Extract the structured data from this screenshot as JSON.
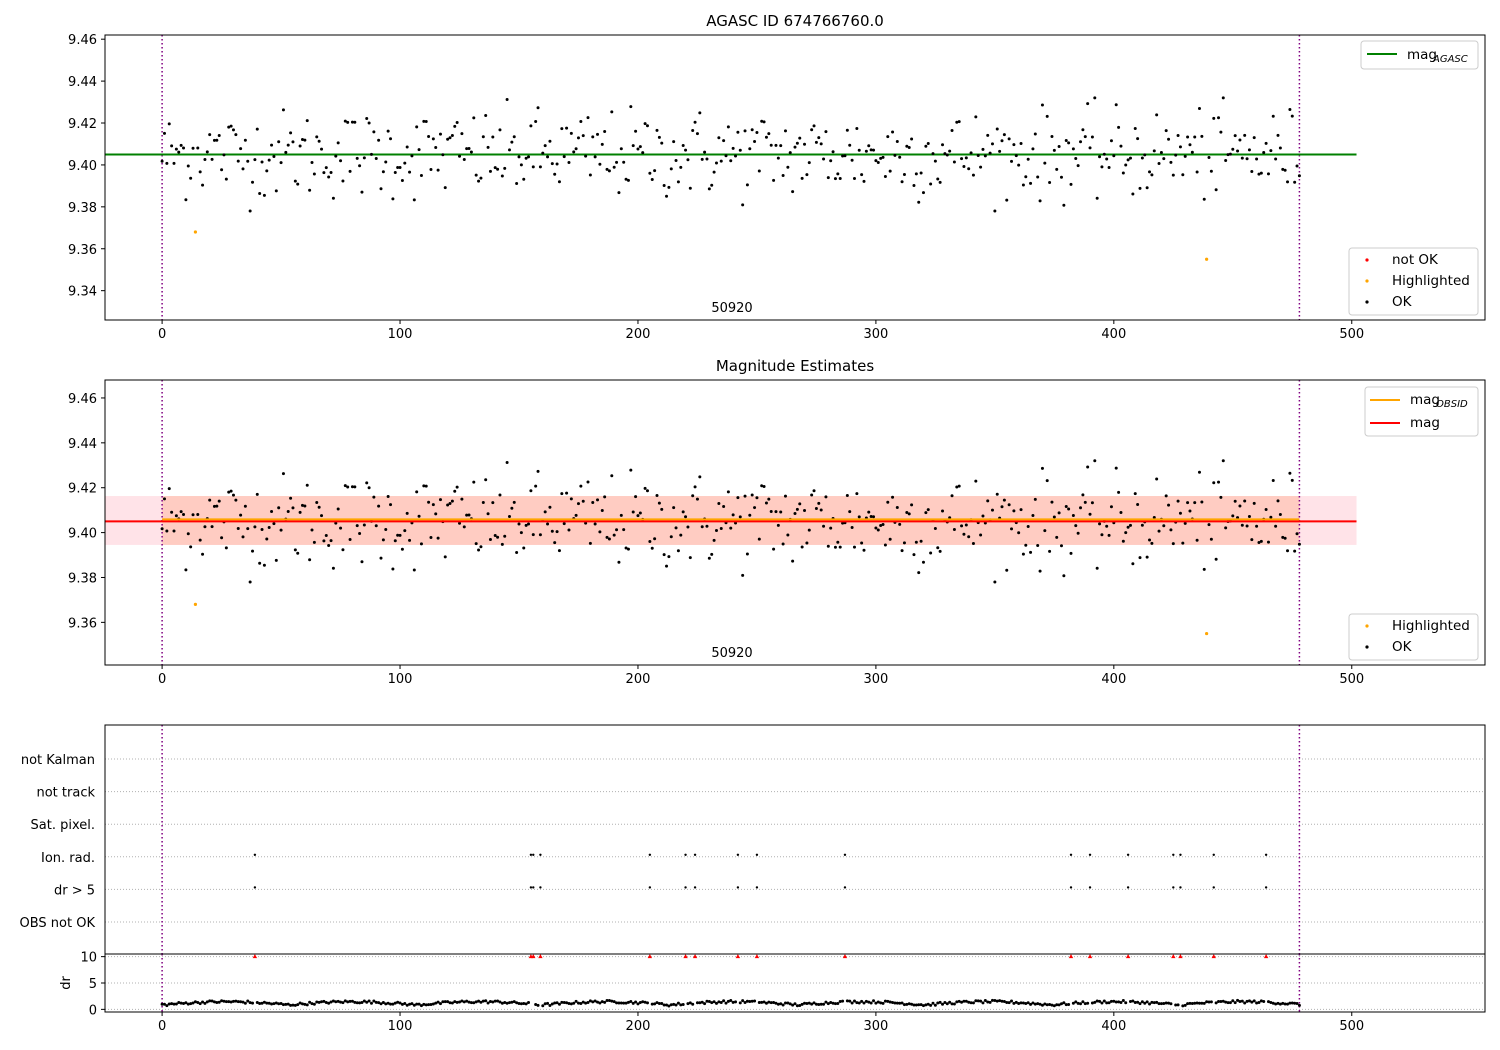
{
  "colors": {
    "ok": "#000000",
    "not_ok": "#ff0000",
    "highlighted": "#ffa500",
    "mag_agasc_line": "#008000",
    "mag_line": "#ff0000",
    "mag_obsid_line": "#ffa500",
    "band_outer": "#ffc0cb",
    "band_inner": "#ffa07a",
    "obs_boundary": "#800080",
    "grid": "#b0b0b0"
  },
  "chart_data": [
    {
      "id": "agasc",
      "type": "scatter",
      "title": "AGASC ID 674766760.0",
      "xlim": [
        -24,
        556
      ],
      "ylim": [
        9.326,
        9.462
      ],
      "xticks": [
        0,
        100,
        200,
        300,
        400,
        500
      ],
      "yticks": [
        9.34,
        9.36,
        9.38,
        9.4,
        9.42,
        9.44,
        9.46
      ],
      "obs_label": "50920",
      "obs_boundaries": [
        0,
        478
      ],
      "mag_agasc": 9.405,
      "mag_agasc_extent": [
        -24,
        502
      ],
      "highlighted_points": [
        [
          14,
          9.368
        ],
        [
          439,
          9.355
        ]
      ],
      "legend_top": {
        "placement": "upper right",
        "entries": [
          {
            "label": "mag",
            "sub": "AGASC",
            "style": "line",
            "color": "#008000"
          }
        ]
      },
      "legend_bottom": {
        "placement": "lower right",
        "entries": [
          {
            "label": "not OK",
            "style": "dot",
            "color": "#ff0000"
          },
          {
            "label": "Highlighted",
            "style": "dot",
            "color": "#ffa500"
          },
          {
            "label": "OK",
            "style": "dot",
            "color": "#000000"
          }
        ]
      }
    },
    {
      "id": "estimates",
      "type": "scatter",
      "title": "Magnitude Estimates",
      "xlim": [
        -24,
        556
      ],
      "ylim": [
        9.341,
        9.468
      ],
      "xticks": [
        0,
        100,
        200,
        300,
        400,
        500
      ],
      "yticks": [
        9.36,
        9.38,
        9.4,
        9.42,
        9.44,
        9.46
      ],
      "obs_label": "50920",
      "obs_boundaries": [
        0,
        478
      ],
      "mag": 9.405,
      "mag_extent": [
        -24,
        502
      ],
      "mag_obsid": 9.405,
      "mag_obsid_extent": [
        0,
        478
      ],
      "band_outer": [
        9.3945,
        9.4163
      ],
      "band_inner": [
        9.3945,
        9.4163
      ],
      "highlighted_points": [
        [
          14,
          9.368
        ],
        [
          439,
          9.355
        ]
      ],
      "legend_top": {
        "placement": "upper right",
        "entries": [
          {
            "label": "mag",
            "sub": "OBSID",
            "style": "line",
            "color": "#ffa500"
          },
          {
            "label": "mag",
            "sub": "",
            "style": "line",
            "color": "#ff0000"
          }
        ]
      },
      "legend_bottom": {
        "placement": "lower right",
        "entries": [
          {
            "label": "Highlighted",
            "style": "dot",
            "color": "#ffa500"
          },
          {
            "label": "OK",
            "style": "dot",
            "color": "#000000"
          }
        ]
      }
    },
    {
      "id": "flags",
      "type": "scatter",
      "xlim": [
        -24,
        556
      ],
      "rows": [
        "not Kalman",
        "not track",
        "Sat. pixel.",
        "Ion. rad.",
        "dr > 5",
        "OBS not OK"
      ],
      "flag_indices": {
        "Ion. rad.": [
          39,
          155,
          156,
          159,
          205,
          220,
          224,
          242,
          250,
          287,
          382,
          390,
          406,
          425,
          428,
          442,
          464
        ],
        "dr > 5": [
          39,
          155,
          156,
          159,
          205,
          220,
          224,
          242,
          250,
          287,
          382,
          390,
          406,
          425,
          428,
          442,
          464
        ]
      },
      "obs_boundaries": [
        0,
        478
      ]
    },
    {
      "id": "dr",
      "type": "scatter",
      "ylabel": "dr",
      "xlim": [
        -24,
        556
      ],
      "ylim": [
        -0.5,
        10.5
      ],
      "xticks": [
        0,
        100,
        200,
        300,
        400,
        500
      ],
      "yticks": [
        0,
        5,
        10
      ],
      "clipped_at": 10,
      "clipped_indices": [
        39,
        155,
        156,
        159,
        205,
        220,
        224,
        242,
        250,
        287,
        382,
        390,
        406,
        425,
        428,
        442,
        464
      ],
      "obs_boundaries": [
        0,
        478
      ]
    }
  ]
}
